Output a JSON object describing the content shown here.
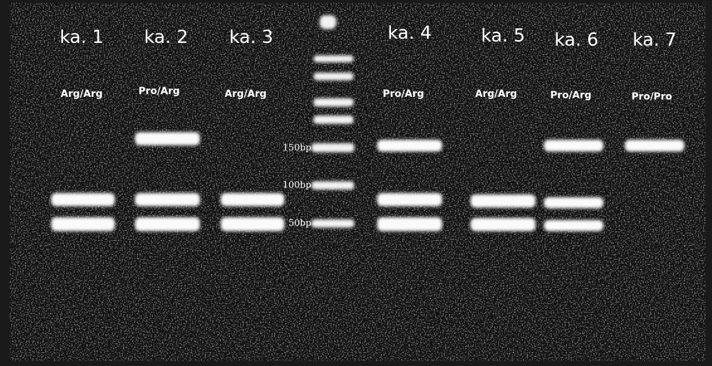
{
  "lanes": [
    {
      "label": "ka. 1",
      "genotype": "Arg/Arg"
    },
    {
      "label": "ka. 2",
      "genotype": "Pro/Arg"
    },
    {
      "label": "ka. 3",
      "genotype": "Arg/Arg"
    },
    {
      "label": "ka. 4",
      "genotype": "Pro/Arg"
    },
    {
      "label": "ka. 5",
      "genotype": "Arg/Arg"
    },
    {
      "label": "ka. 6",
      "genotype": "Pro/Arg"
    },
    {
      "label": "ka. 7",
      "genotype": "Pro/Pro"
    }
  ],
  "ladder": [
    "150bp",
    "100bp",
    "50bp"
  ]
}
